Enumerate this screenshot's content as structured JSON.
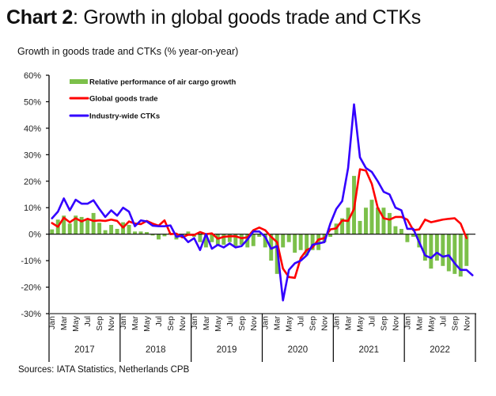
{
  "header": {
    "title_bold": "Chart 2",
    "title_rest": ": Growth in global goods trade and CTKs",
    "subtitle": "Growth in goods trade and CTKs (% year-on-year)"
  },
  "footer": {
    "source": "Sources: IATA Statistics, Netherlands CPB"
  },
  "chart_data": {
    "type": "line",
    "title": "Growth in global goods trade and CTKs",
    "ylabel": "Growth in goods trade and CTKs (% year-on-year)",
    "xlabel": "",
    "ylim": [
      -30,
      60
    ],
    "yticks": [
      60,
      50,
      40,
      30,
      20,
      10,
      0,
      -10,
      -20,
      -30
    ],
    "ytick_labels": [
      "60%",
      "50%",
      "40%",
      "30%",
      "20%",
      "10%",
      "0%",
      "-10%",
      "-20%",
      "-30%"
    ],
    "years": [
      "2017",
      "2018",
      "2019",
      "2020",
      "2021",
      "2022"
    ],
    "month_tick_labels": [
      "Jan",
      "Mar",
      "May",
      "Jul",
      "Sep",
      "Nov"
    ],
    "legend_position": "top-left",
    "grid": false,
    "colors": {
      "bars": "#7cc04a",
      "goods_trade": "#ff0000",
      "ctks": "#3300ff"
    },
    "series": [
      {
        "name": "Relative performance of air cargo growth",
        "type": "bar",
        "values": [
          1.8,
          5.5,
          7,
          4,
          7,
          6.5,
          5.5,
          8,
          4.3,
          1.5,
          3.5,
          2,
          4.5,
          3.5,
          1,
          1,
          0.8,
          -0.5,
          -2,
          -0.8,
          0.5,
          -2,
          -1,
          1,
          -1,
          -3,
          -5,
          -3,
          -4,
          -4,
          -3,
          -4.5,
          -4,
          -5,
          -4.5,
          -1,
          -5,
          -10,
          -15,
          -5,
          -3,
          -7,
          -6,
          -8,
          -6,
          -6,
          -3,
          -1,
          4,
          6,
          10,
          22,
          5,
          10,
          13,
          10,
          10,
          8,
          3,
          2,
          -3,
          -1,
          -5,
          -10,
          -13,
          -10,
          -12,
          -14,
          -15,
          -16,
          -12,
          null
        ]
      },
      {
        "name": "Global goods trade",
        "type": "line",
        "values": [
          4.2,
          2.8,
          6.2,
          4.5,
          6,
          4.8,
          5.8,
          5,
          5.2,
          5,
          5.5,
          5,
          2.5,
          4.8,
          4,
          3.8,
          5,
          4,
          3.2,
          5.2,
          0,
          0.2,
          -1.2,
          -0.2,
          -0.3,
          0.8,
          0,
          0.3,
          -1.7,
          -1,
          -0.8,
          -0.8,
          -1.5,
          -1.2,
          1.5,
          2.5,
          1.5,
          -1,
          -3,
          -13,
          -16.2,
          -16.5,
          -9,
          -6,
          -5,
          -2,
          -1.5,
          1.8,
          2.2,
          5.2,
          5,
          9.5,
          24.5,
          24,
          19,
          10,
          6,
          5.5,
          6.5,
          6.5,
          5.5,
          1.5,
          1.8,
          5.5,
          4.5,
          5,
          5.5,
          5.8,
          6,
          4,
          -1.5,
          null
        ]
      },
      {
        "name": "Industry-wide CTKs",
        "type": "line",
        "values": [
          6,
          8.5,
          13.5,
          9,
          13,
          11.5,
          11.5,
          12.8,
          9.5,
          6.5,
          9,
          7,
          10,
          8.5,
          3,
          5.2,
          4.8,
          3.2,
          3,
          3,
          3.3,
          -1,
          -0.5,
          -3,
          -1.5,
          -6,
          0,
          -5.5,
          -4,
          -5,
          -3.5,
          -5,
          -4.5,
          -2,
          1,
          1,
          -1,
          -5.5,
          -4.5,
          -25,
          -13.5,
          -11,
          -10,
          -8,
          -4,
          -3.5,
          -3,
          4,
          9.5,
          12.5,
          25,
          49,
          29,
          25,
          23.5,
          20,
          16,
          15,
          10,
          9,
          2,
          2,
          -3,
          -8,
          -9,
          -7,
          -8.5,
          -8,
          -11,
          -13.5,
          -13.5,
          -15.5
        ]
      }
    ]
  }
}
